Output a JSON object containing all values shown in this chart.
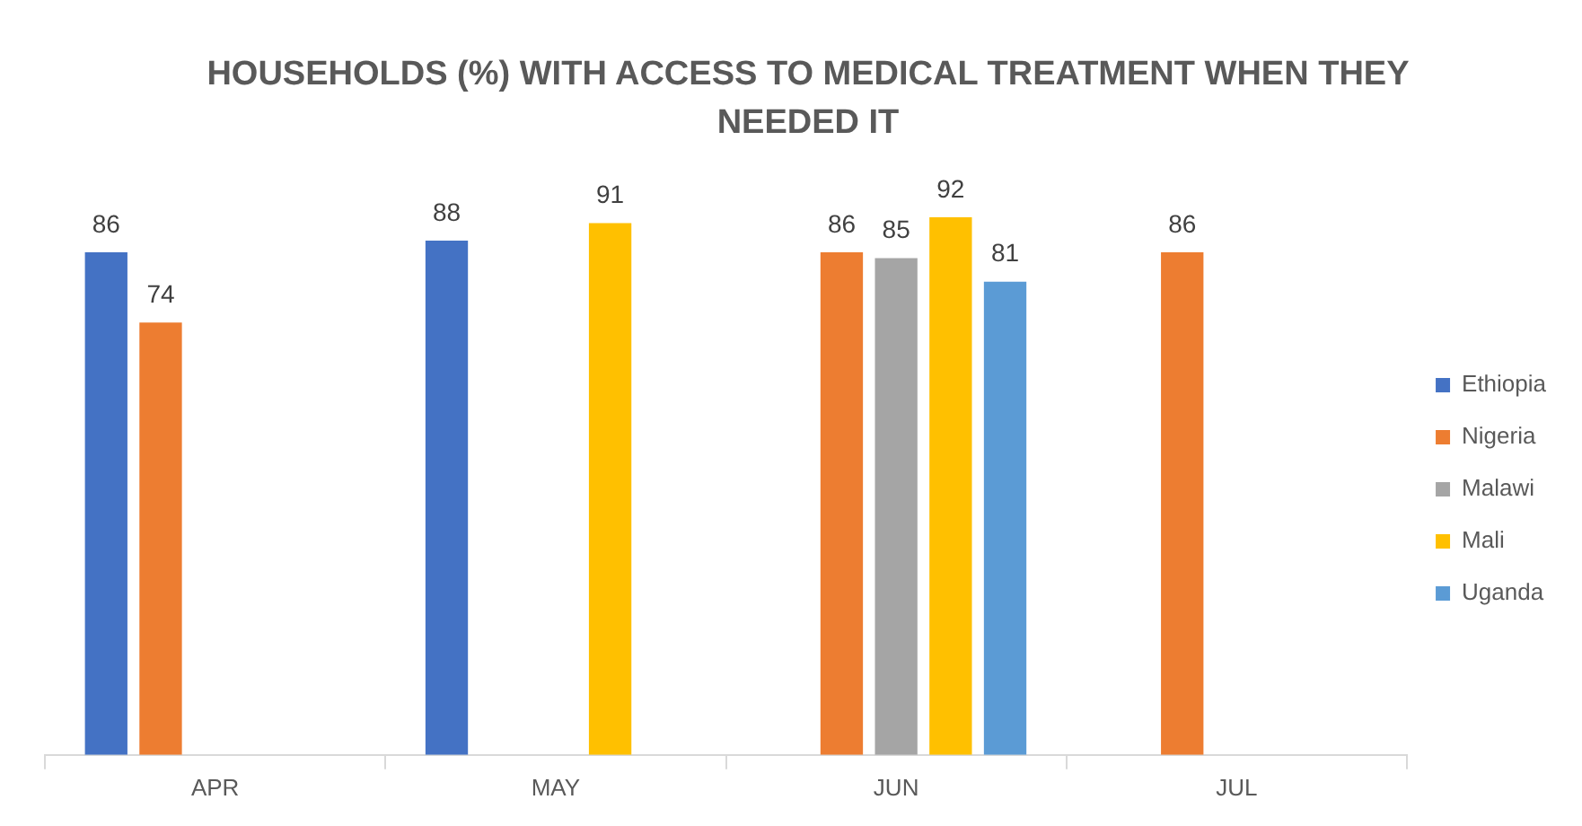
{
  "chart_data": {
    "type": "bar",
    "title": "HOUSEHOLDS (%) WITH ACCESS TO MEDICAL TREATMENT WHEN THEY NEEDED IT",
    "categories": [
      "APR",
      "MAY",
      "JUN",
      "JUL"
    ],
    "series": [
      {
        "name": "Ethiopia",
        "color": "#4472c4",
        "values": [
          86,
          88,
          null,
          null
        ]
      },
      {
        "name": "Nigeria",
        "color": "#ed7d31",
        "values": [
          74,
          null,
          86,
          86
        ]
      },
      {
        "name": "Malawi",
        "color": "#a5a5a5",
        "values": [
          null,
          null,
          85,
          null
        ]
      },
      {
        "name": "Mali",
        "color": "#ffc000",
        "values": [
          null,
          91,
          92,
          null
        ]
      },
      {
        "name": "Uganda",
        "color": "#5b9bd5",
        "values": [
          null,
          null,
          81,
          null
        ]
      }
    ],
    "data_labels": true,
    "legend": "right"
  }
}
